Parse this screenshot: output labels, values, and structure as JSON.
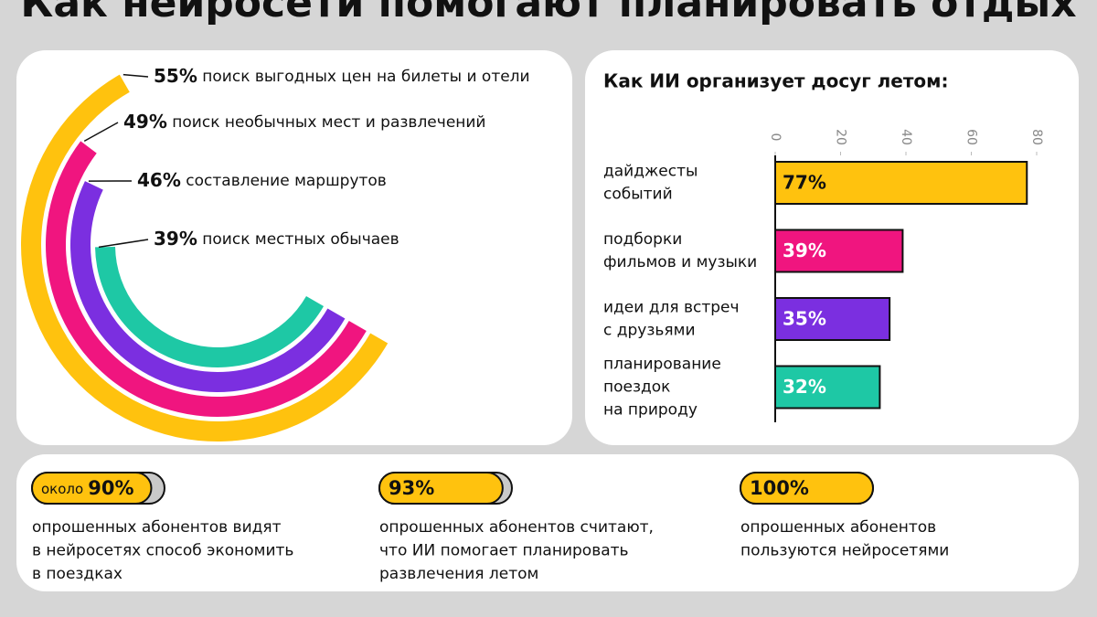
{
  "title": "Как нейросети помогают планировать отдых",
  "chart_data": [
    {
      "type": "radial_bar",
      "categories": [
        "поиск выгодных цен на билеты и отели",
        "поиск необычных мест и развлечений",
        "составление маршрутов",
        "поиск местных обычаев"
      ],
      "values": [
        55,
        49,
        46,
        39
      ],
      "value_labels": [
        "55%",
        "49%",
        "46%",
        "39%"
      ],
      "colors": [
        "#ffc20e",
        "#f0157f",
        "#7b2fe0",
        "#1ec8a5"
      ]
    },
    {
      "type": "hbar",
      "title": "Как ИИ организует досуг летом:",
      "categories": [
        [
          "дайджесты",
          "событий"
        ],
        [
          "подборки",
          "фильмов и музыки"
        ],
        [
          "идеи для встреч",
          "с друзьями"
        ],
        [
          "планирование",
          "поездок",
          "на природу"
        ]
      ],
      "values": [
        77,
        39,
        35,
        32
      ],
      "value_labels": [
        "77%",
        "39%",
        "35%",
        "32%"
      ],
      "colors": [
        "#ffc20e",
        "#f0157f",
        "#7b2fe0",
        "#1ec8a5"
      ],
      "xlim": [
        0,
        80
      ],
      "xticks": [
        0,
        20,
        40,
        60,
        80
      ]
    }
  ],
  "stats": [
    {
      "prefix": "около",
      "value": 90,
      "value_label": "90%",
      "text": [
        "опрошенных абонентов видят",
        "в нейросетях способ экономить",
        "в поездках"
      ]
    },
    {
      "value": 93,
      "value_label": "93%",
      "text": [
        "опрошенных абонентов считают,",
        "что ИИ помогает планировать",
        "развлечения летом"
      ]
    },
    {
      "value": 100,
      "value_label": "100%",
      "text": [
        "опрошенных абонентов",
        "пользуются нейросетями"
      ]
    }
  ]
}
